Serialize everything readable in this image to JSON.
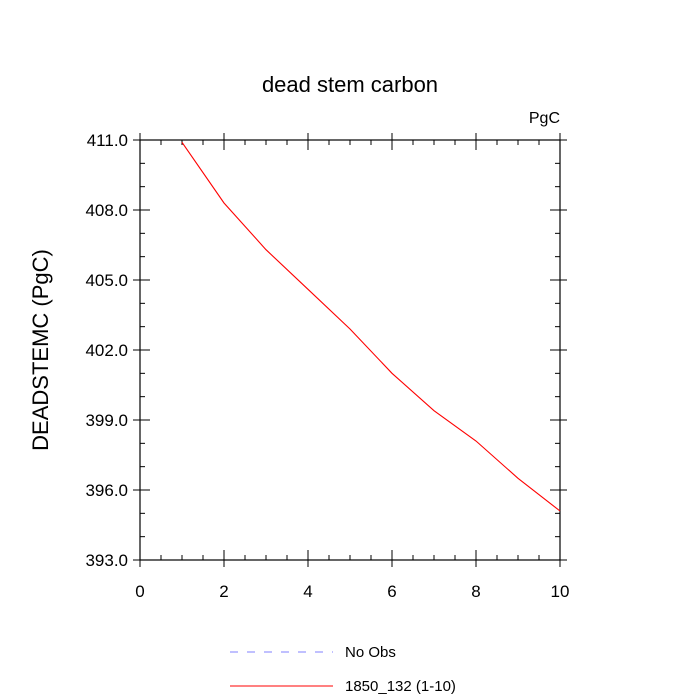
{
  "chart_data": {
    "type": "line",
    "title": "dead stem carbon",
    "units_label": "PgC",
    "ylabel": "DEADSTEMC  (PgC)",
    "xlabel": "",
    "xlim": [
      0,
      10
    ],
    "ylim": [
      393.0,
      411.0
    ],
    "x_ticks": [
      "0",
      "2",
      "4",
      "6",
      "8",
      "10"
    ],
    "y_ticks": [
      "393.0",
      "396.0",
      "399.0",
      "402.0",
      "405.0",
      "408.0",
      "411.0"
    ],
    "grid": false,
    "legend_position": "bottom",
    "series": [
      {
        "name": "No Obs",
        "color": "#8080ff",
        "style": "dashed",
        "x": [],
        "y": []
      },
      {
        "name": "1850_132 (1-10)",
        "color": "#ff0000",
        "style": "solid",
        "x": [
          1,
          2,
          3,
          4,
          5,
          6,
          7,
          8,
          9,
          10
        ],
        "y": [
          410.9,
          408.3,
          406.3,
          404.6,
          402.9,
          401.0,
          399.4,
          398.1,
          396.5,
          395.1
        ]
      }
    ]
  }
}
